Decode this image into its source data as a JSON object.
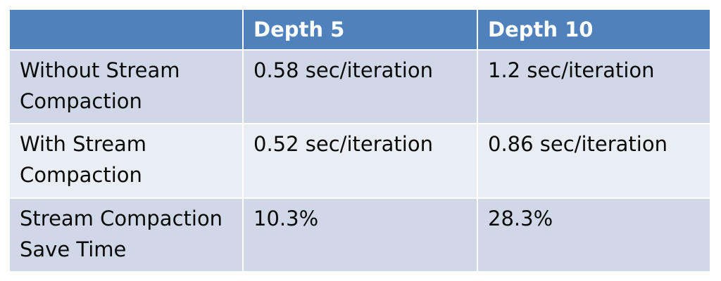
{
  "chart_data": {
    "type": "table",
    "columns": [
      "",
      "Depth 5",
      "Depth 10"
    ],
    "rows": [
      {
        "label": "Without Stream Compaction",
        "values": [
          "0.58 sec/iteration",
          "1.2 sec/iteration"
        ]
      },
      {
        "label": "With Stream Compaction",
        "values": [
          "0.52 sec/iteration",
          "0.86 sec/iteration"
        ]
      },
      {
        "label": "Stream Compaction Save Time",
        "values": [
          "10.3%",
          "28.3%"
        ]
      }
    ]
  },
  "colors": {
    "header": "#4f81bd",
    "row_dark": "#d0d8e8",
    "row_light": "#e9edf4"
  }
}
